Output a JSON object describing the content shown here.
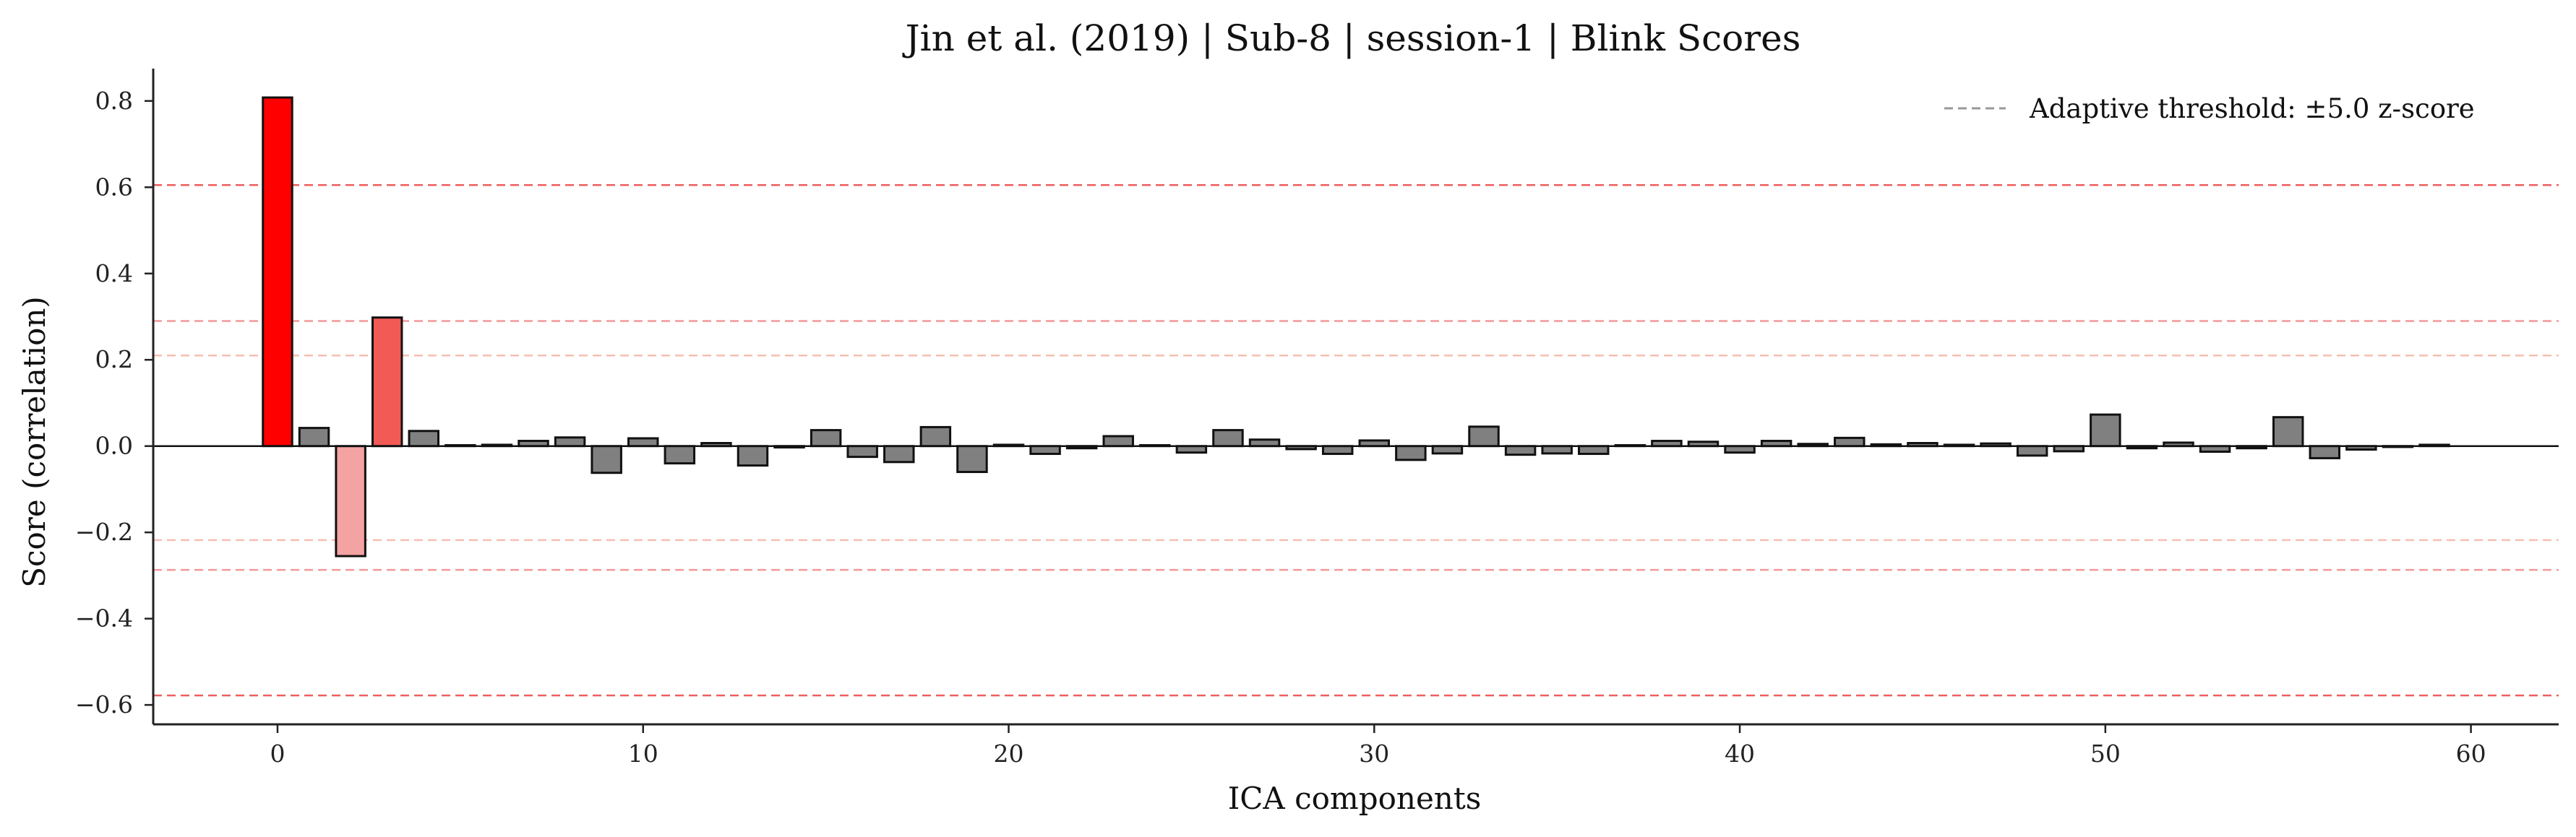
{
  "chart_data": {
    "type": "bar",
    "title": "Jin et al. (2019) | Sub-8 | session-1 | Blink Scores",
    "xlabel": "ICA components",
    "ylabel": "Score (correlation)",
    "xlim": [
      -3.4,
      62.4
    ],
    "ylim": [
      -0.645,
      0.875
    ],
    "xticks": [
      0,
      10,
      20,
      30,
      40,
      50,
      60
    ],
    "yticks": [
      -0.6,
      -0.4,
      -0.2,
      0.0,
      0.2,
      0.4,
      0.6,
      0.8
    ],
    "ytick_labels": [
      "−0.6",
      "−0.4",
      "−0.2",
      "0.0",
      "0.2",
      "0.4",
      "0.6",
      "0.8"
    ],
    "legend": {
      "label": "Adaptive threshold: ±5.0 z-score",
      "placement": "top-right"
    },
    "thresholds": [
      {
        "value": 0.605,
        "color": "#ee5555",
        "opacity": 0.95
      },
      {
        "value": -0.578,
        "color": "#ee5555",
        "opacity": 0.95
      },
      {
        "value": 0.29,
        "color": "#f08080",
        "opacity": 0.8
      },
      {
        "value": -0.287,
        "color": "#f08080",
        "opacity": 0.8
      },
      {
        "value": 0.21,
        "color": "#f4b8a8",
        "opacity": 0.9
      },
      {
        "value": -0.218,
        "color": "#f4b8a8",
        "opacity": 0.9
      }
    ],
    "x": [
      0,
      1,
      2,
      3,
      4,
      5,
      6,
      7,
      8,
      9,
      10,
      11,
      12,
      13,
      14,
      15,
      16,
      17,
      18,
      19,
      20,
      21,
      22,
      23,
      24,
      25,
      26,
      27,
      28,
      29,
      30,
      31,
      32,
      33,
      34,
      35,
      36,
      37,
      38,
      39,
      40,
      41,
      42,
      43,
      44,
      45,
      46,
      47,
      48,
      49,
      50,
      51,
      52,
      53,
      54,
      55,
      56,
      57,
      58,
      59
    ],
    "values": [
      0.808,
      0.042,
      -0.255,
      0.298,
      0.035,
      0.002,
      0.003,
      0.012,
      0.02,
      -0.062,
      0.018,
      -0.04,
      0.007,
      -0.045,
      -0.003,
      0.037,
      -0.025,
      -0.037,
      0.044,
      -0.06,
      0.003,
      -0.018,
      -0.005,
      0.023,
      0.002,
      -0.015,
      0.037,
      0.015,
      -0.007,
      -0.018,
      0.013,
      -0.032,
      -0.017,
      0.045,
      -0.02,
      -0.017,
      -0.018,
      0.002,
      0.012,
      0.01,
      -0.015,
      0.012,
      0.005,
      0.019,
      0.004,
      0.007,
      0.003,
      0.006,
      -0.022,
      -0.012,
      0.073,
      -0.005,
      0.008,
      -0.013,
      -0.005,
      0.067,
      -0.028,
      -0.008,
      -0.002,
      0.003
    ],
    "colors": [
      "#ff0000",
      "#808080",
      "#f4a3a3",
      "#f25a55",
      "#808080",
      "#808080",
      "#808080",
      "#808080",
      "#808080",
      "#808080",
      "#808080",
      "#808080",
      "#808080",
      "#808080",
      "#808080",
      "#808080",
      "#808080",
      "#808080",
      "#808080",
      "#808080",
      "#808080",
      "#808080",
      "#808080",
      "#808080",
      "#808080",
      "#808080",
      "#808080",
      "#808080",
      "#808080",
      "#808080",
      "#808080",
      "#808080",
      "#808080",
      "#808080",
      "#808080",
      "#808080",
      "#808080",
      "#808080",
      "#808080",
      "#808080",
      "#808080",
      "#808080",
      "#808080",
      "#808080",
      "#808080",
      "#808080",
      "#808080",
      "#808080",
      "#808080",
      "#808080",
      "#808080",
      "#808080",
      "#808080",
      "#808080",
      "#808080",
      "#808080",
      "#808080",
      "#808080",
      "#808080",
      "#808080"
    ],
    "bar_edge_color": "#111111",
    "grid": false
  }
}
